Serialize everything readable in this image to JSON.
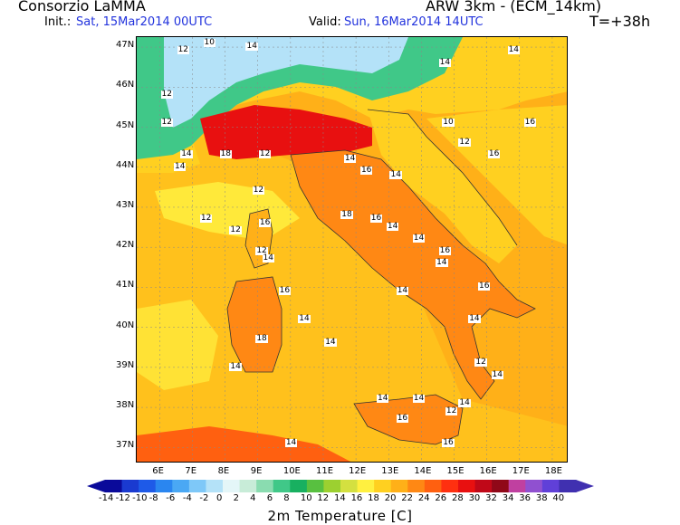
{
  "header": {
    "org": "Consorzio LaMMA",
    "model": "ARW 3km - (ECM_14km)",
    "init_label": "Init.:",
    "init_value": "Sat, 15Mar2014 00UTC",
    "valid_label": "Valid:",
    "valid_value": "Sun, 16Mar2014 14UTC",
    "lead": "T=+38h"
  },
  "axes": {
    "lat_labels": [
      "47N",
      "46N",
      "45N",
      "44N",
      "43N",
      "42N",
      "41N",
      "40N",
      "39N",
      "38N",
      "37N"
    ],
    "lon_labels": [
      "6E",
      "7E",
      "8E",
      "9E",
      "10E",
      "11E",
      "12E",
      "13E",
      "14E",
      "15E",
      "16E",
      "17E",
      "18E"
    ]
  },
  "colorbar": {
    "title": "2m Temperature [C]",
    "labels": [
      "-14",
      "-12",
      "-10",
      "-8",
      "-6",
      "-4",
      "-2",
      "0",
      "2",
      "4",
      "6",
      "8",
      "10",
      "12",
      "14",
      "16",
      "18",
      "20",
      "22",
      "24",
      "26",
      "28",
      "30",
      "32",
      "34",
      "36",
      "38",
      "40"
    ],
    "colors": [
      "#0a0a9a",
      "#1a3ad0",
      "#1e5ae8",
      "#2a86f0",
      "#4aa8f4",
      "#7ec8f8",
      "#b4e2f8",
      "#e4f6f8",
      "#c8ecd8",
      "#8adcb0",
      "#40c888",
      "#18b060",
      "#58c040",
      "#9cd030",
      "#d4e040",
      "#fff040",
      "#ffd020",
      "#ffb018",
      "#ff8814",
      "#ff6010",
      "#ff3010",
      "#e81010",
      "#c00818",
      "#900818",
      "#c040a0",
      "#9050d0",
      "#6040d8",
      "#4030b0"
    ]
  },
  "map_labels": [
    {
      "text": "12",
      "lon": 6.7,
      "lat": 46.9
    },
    {
      "text": "10",
      "lon": 7.5,
      "lat": 47.1
    },
    {
      "text": "14",
      "lon": 8.8,
      "lat": 47.0
    },
    {
      "text": "14",
      "lon": 16.8,
      "lat": 46.9
    },
    {
      "text": "14",
      "lon": 14.7,
      "lat": 46.6
    },
    {
      "text": "12",
      "lon": 6.2,
      "lat": 45.8
    },
    {
      "text": "12",
      "lon": 6.2,
      "lat": 45.1
    },
    {
      "text": "10",
      "lon": 14.8,
      "lat": 45.1
    },
    {
      "text": "16",
      "lon": 17.3,
      "lat": 45.1
    },
    {
      "text": "12",
      "lon": 15.3,
      "lat": 44.6
    },
    {
      "text": "16",
      "lon": 16.2,
      "lat": 44.3
    },
    {
      "text": "14",
      "lon": 6.8,
      "lat": 44.3
    },
    {
      "text": "14",
      "lon": 6.6,
      "lat": 44.0
    },
    {
      "text": "18",
      "lon": 8.0,
      "lat": 44.3
    },
    {
      "text": "12",
      "lon": 9.2,
      "lat": 44.3
    },
    {
      "text": "14",
      "lon": 11.8,
      "lat": 44.2
    },
    {
      "text": "16",
      "lon": 12.3,
      "lat": 43.9
    },
    {
      "text": "14",
      "lon": 13.2,
      "lat": 43.8
    },
    {
      "text": "12",
      "lon": 9.0,
      "lat": 43.4
    },
    {
      "text": "12",
      "lon": 7.4,
      "lat": 42.7
    },
    {
      "text": "12",
      "lon": 8.3,
      "lat": 42.4
    },
    {
      "text": "16",
      "lon": 9.2,
      "lat": 42.6
    },
    {
      "text": "18",
      "lon": 11.7,
      "lat": 42.8
    },
    {
      "text": "16",
      "lon": 12.6,
      "lat": 42.7
    },
    {
      "text": "14",
      "lon": 13.1,
      "lat": 42.5
    },
    {
      "text": "14",
      "lon": 13.9,
      "lat": 42.2
    },
    {
      "text": "16",
      "lon": 14.7,
      "lat": 41.9
    },
    {
      "text": "12",
      "lon": 9.1,
      "lat": 41.9
    },
    {
      "text": "14",
      "lon": 9.3,
      "lat": 41.7
    },
    {
      "text": "14",
      "lon": 14.6,
      "lat": 41.6
    },
    {
      "text": "16",
      "lon": 9.8,
      "lat": 40.9
    },
    {
      "text": "14",
      "lon": 13.4,
      "lat": 40.9
    },
    {
      "text": "16",
      "lon": 15.9,
      "lat": 41.0
    },
    {
      "text": "14",
      "lon": 10.4,
      "lat": 40.2
    },
    {
      "text": "14",
      "lon": 15.6,
      "lat": 40.2
    },
    {
      "text": "18",
      "lon": 9.1,
      "lat": 39.7
    },
    {
      "text": "14",
      "lon": 11.2,
      "lat": 39.6
    },
    {
      "text": "14",
      "lon": 8.3,
      "lat": 39.0
    },
    {
      "text": "14",
      "lon": 16.3,
      "lat": 38.8
    },
    {
      "text": "12",
      "lon": 15.8,
      "lat": 39.1
    },
    {
      "text": "14",
      "lon": 12.8,
      "lat": 38.2
    },
    {
      "text": "14",
      "lon": 13.9,
      "lat": 38.2
    },
    {
      "text": "14",
      "lon": 15.3,
      "lat": 38.1
    },
    {
      "text": "12",
      "lon": 14.9,
      "lat": 37.9
    },
    {
      "text": "16",
      "lon": 13.4,
      "lat": 37.7
    },
    {
      "text": "16",
      "lon": 14.8,
      "lat": 37.1
    },
    {
      "text": "14",
      "lon": 10.0,
      "lat": 37.1
    }
  ]
}
